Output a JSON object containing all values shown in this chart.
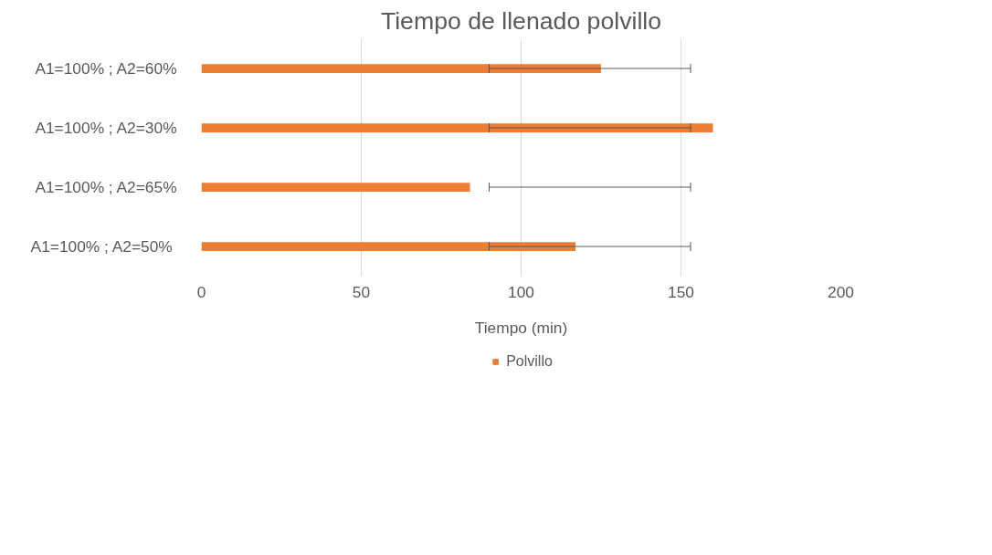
{
  "chart_data": {
    "type": "bar",
    "orientation": "horizontal",
    "title": "Tiempo de llenado polvillo",
    "xlabel": "Tiempo (min)",
    "categories": [
      "A1=100% ; A2=60%",
      "A1=100% ; A2=30%",
      "A1=100% ; A2=65%",
      "A1=100% ;  A2=50%"
    ],
    "series": [
      {
        "name": "Polvillo",
        "color": "#ed7d31",
        "values": [
          125,
          160,
          84,
          117
        ],
        "errors": [
          [
            90,
            153
          ],
          [
            90,
            153
          ],
          [
            90,
            153
          ],
          [
            90,
            153
          ]
        ]
      }
    ],
    "xlim": [
      0,
      200
    ],
    "xticks": [
      0,
      50,
      100,
      150,
      200
    ],
    "grid": "x",
    "legend": "bottom"
  }
}
